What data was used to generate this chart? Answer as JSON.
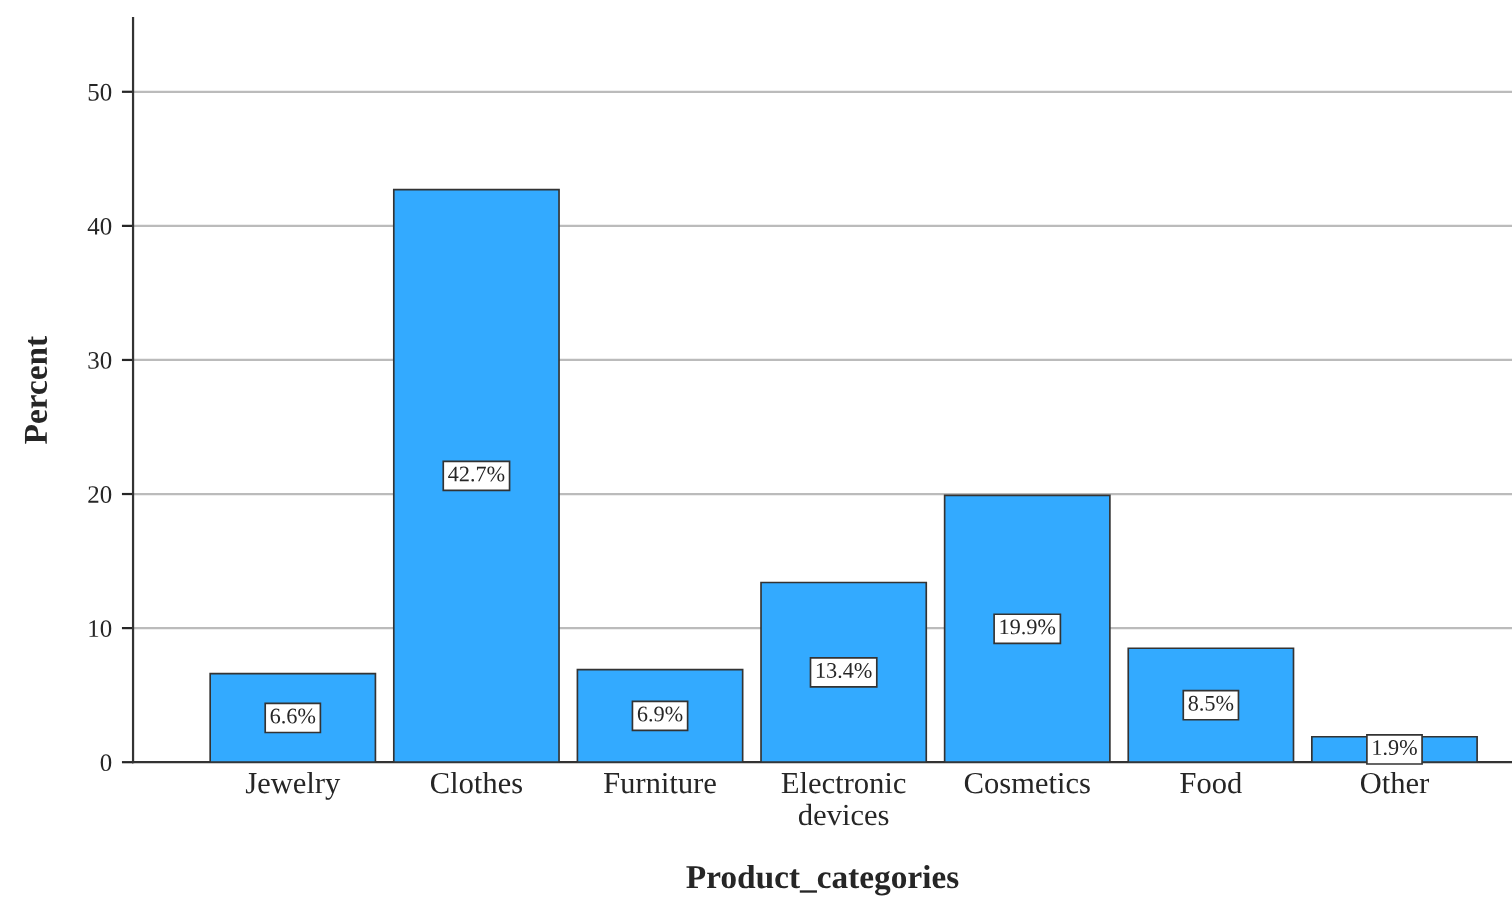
{
  "chart_data": {
    "type": "bar",
    "xlabel": "Product_categories",
    "ylabel": "Percent",
    "categories": [
      "Jewelry",
      "Clothes",
      "Furniture",
      "Electronic\ndevices",
      "Cosmetics",
      "Food",
      "Other"
    ],
    "values": [
      6.6,
      42.7,
      6.9,
      13.4,
      19.9,
      8.5,
      1.9
    ],
    "value_labels": [
      "6.6%",
      "42.7%",
      "6.9%",
      "13.4%",
      "19.9%",
      "8.5%",
      "1.9%"
    ],
    "color": "#33aaff",
    "ylim": [
      0,
      55.5
    ],
    "yticks": [
      0,
      10,
      20,
      30,
      40,
      50
    ],
    "grid": "y"
  }
}
